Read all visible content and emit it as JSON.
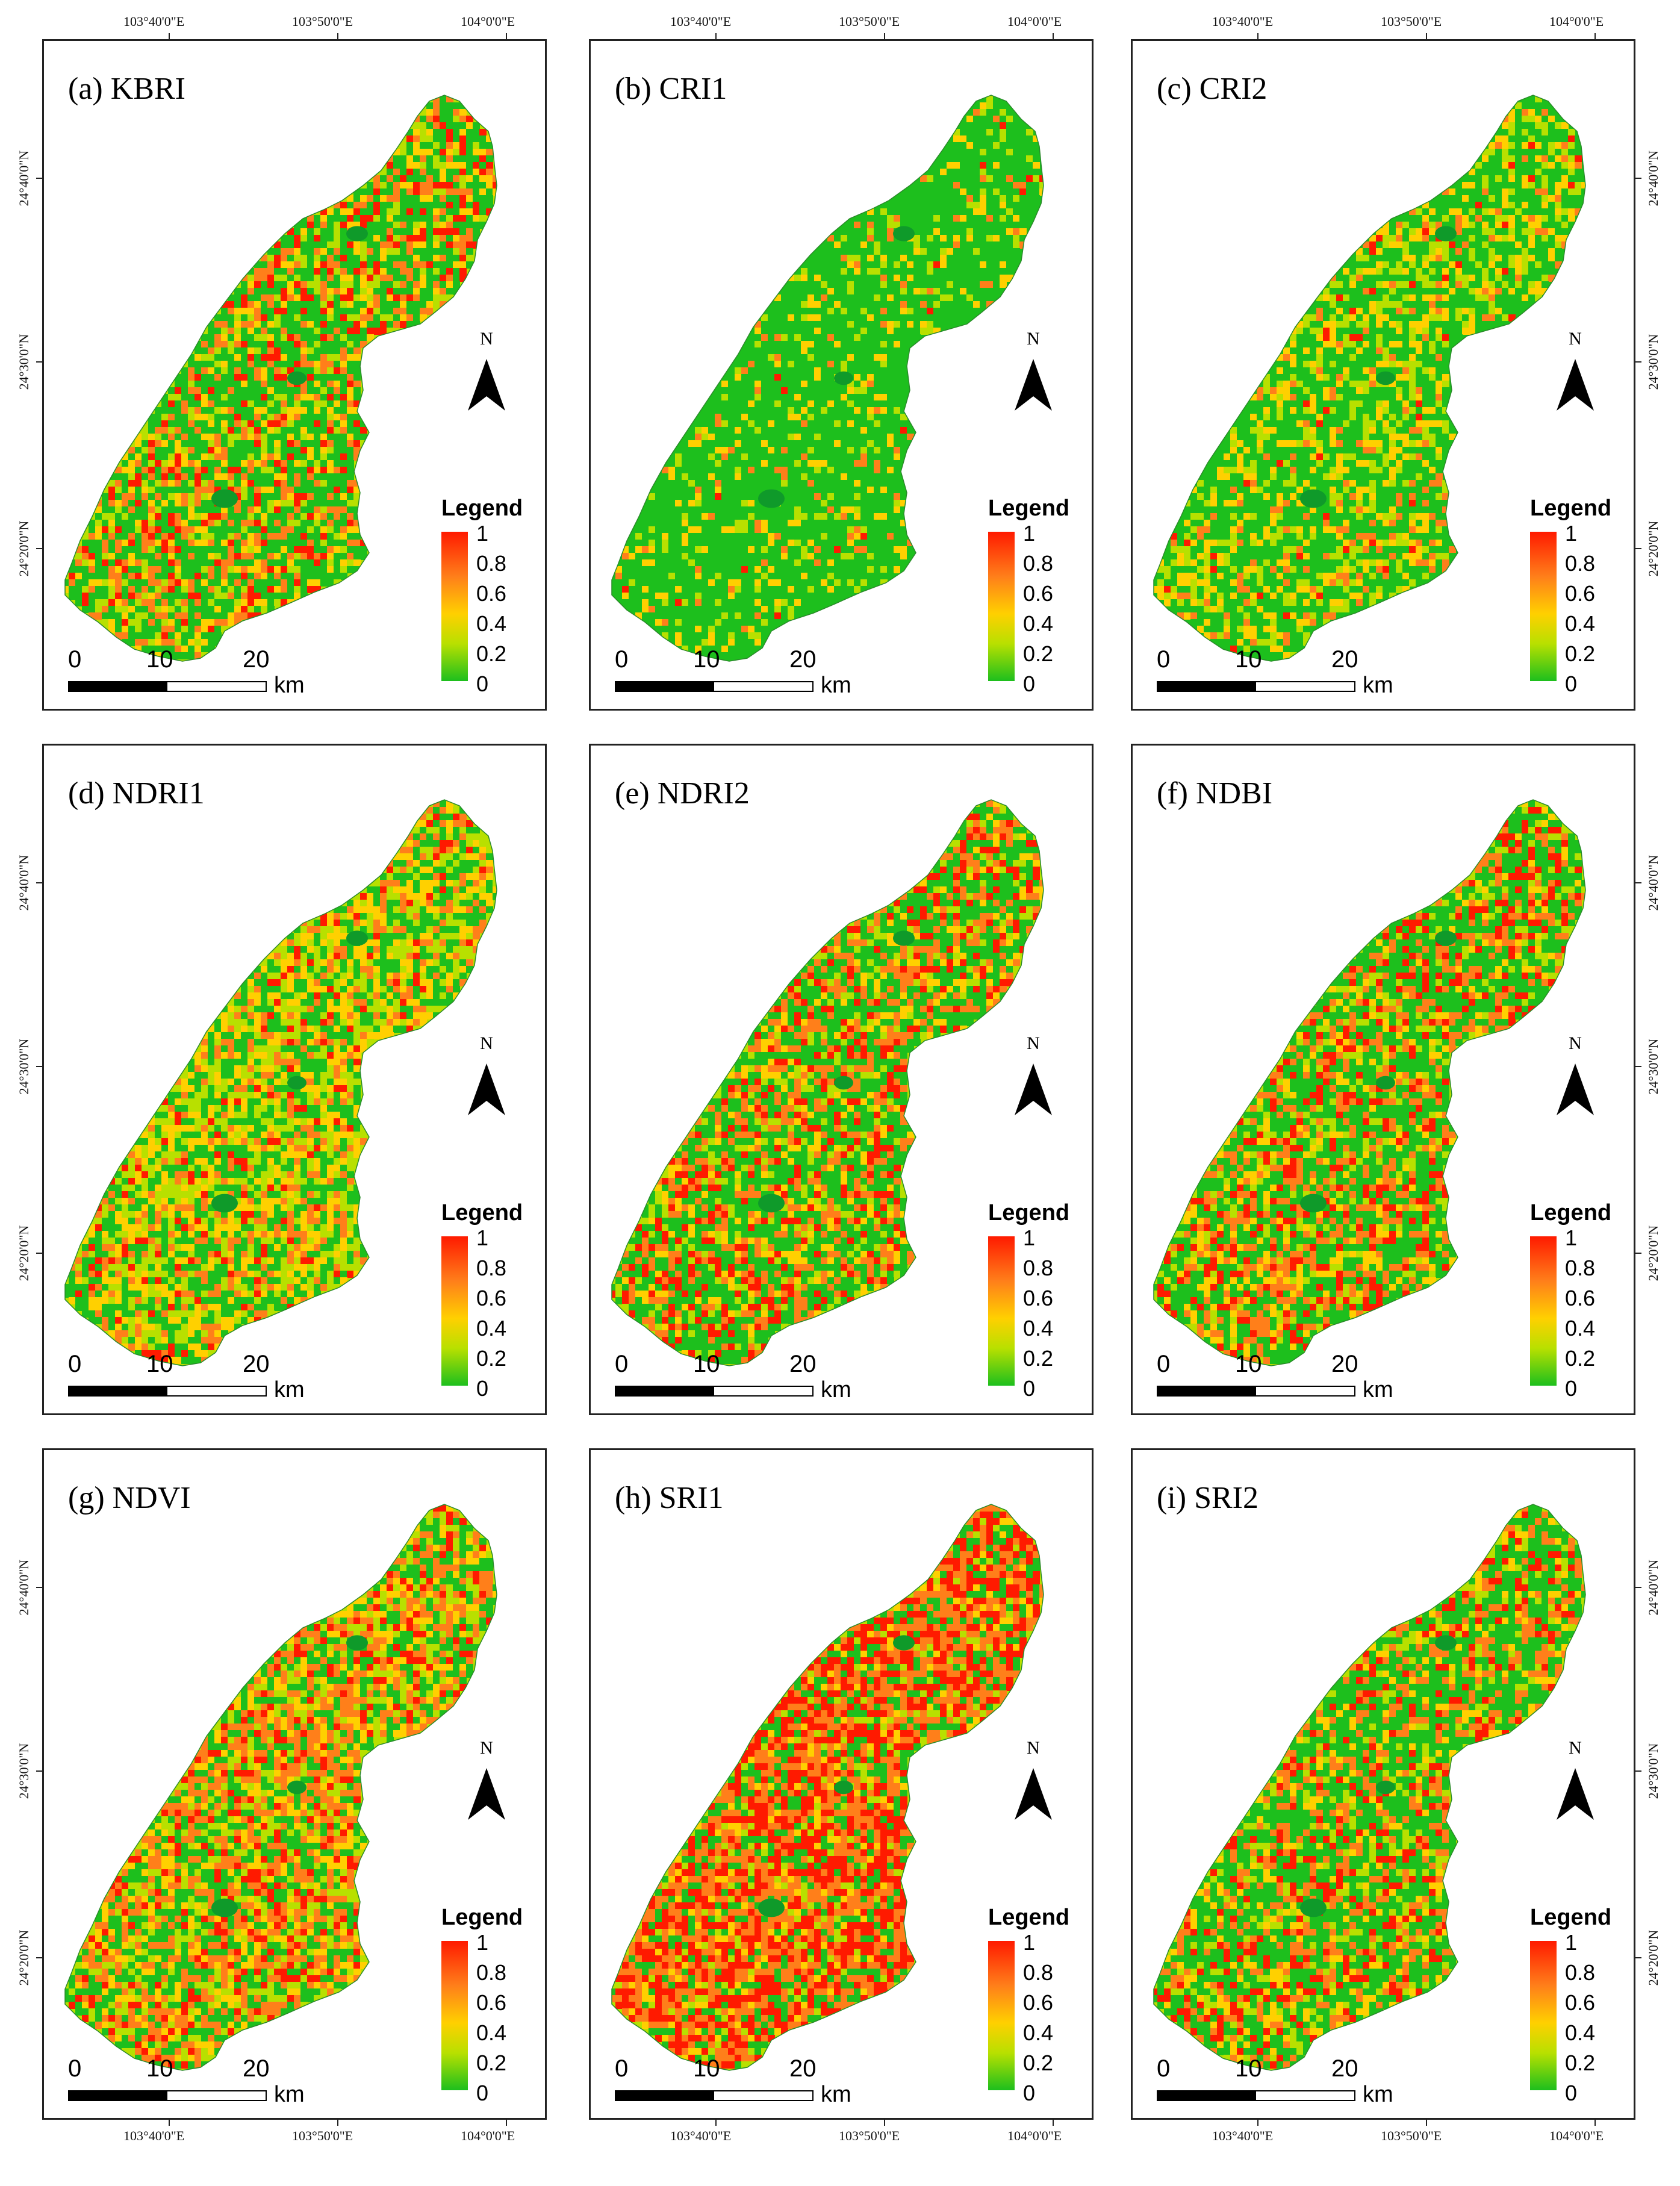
{
  "figure": {
    "panels": [
      {
        "id": "a",
        "title": "(a) KBRI",
        "index": "KBRI",
        "composition": {
          "green": 0.45,
          "yellow": 0.25,
          "orange": 0.18,
          "red": 0.12
        }
      },
      {
        "id": "b",
        "title": "(b) CRI1",
        "index": "CRI1",
        "composition": {
          "green": 0.78,
          "yellow": 0.17,
          "orange": 0.04,
          "red": 0.01
        }
      },
      {
        "id": "c",
        "title": "(c) CRI2",
        "index": "CRI2",
        "composition": {
          "green": 0.55,
          "yellow": 0.35,
          "orange": 0.08,
          "red": 0.02
        }
      },
      {
        "id": "d",
        "title": "(d) NDRI1",
        "index": "NDRI1",
        "composition": {
          "green": 0.35,
          "yellow": 0.45,
          "orange": 0.14,
          "red": 0.06
        }
      },
      {
        "id": "e",
        "title": "(e) NDRI2",
        "index": "NDRI2",
        "composition": {
          "green": 0.45,
          "yellow": 0.2,
          "orange": 0.2,
          "red": 0.15
        }
      },
      {
        "id": "f",
        "title": "(f) NDBI",
        "index": "NDBI",
        "composition": {
          "green": 0.45,
          "yellow": 0.2,
          "orange": 0.2,
          "red": 0.15
        }
      },
      {
        "id": "g",
        "title": "(g) NDVI",
        "index": "NDVI",
        "composition": {
          "green": 0.3,
          "yellow": 0.3,
          "orange": 0.28,
          "red": 0.12
        }
      },
      {
        "id": "h",
        "title": "(h) SRI1",
        "index": "SRI1",
        "composition": {
          "green": 0.2,
          "yellow": 0.15,
          "orange": 0.3,
          "red": 0.35
        }
      },
      {
        "id": "i",
        "title": "(i) SRI2",
        "index": "SRI2",
        "composition": {
          "green": 0.5,
          "yellow": 0.2,
          "orange": 0.18,
          "red": 0.12
        }
      }
    ],
    "legend": {
      "title": "Legend",
      "ticks": [
        "1",
        "0.8",
        "0.6",
        "0.4",
        "0.2",
        "0"
      ],
      "colors": {
        "high": "#ff1a00",
        "mid_high": "#ff7f1a",
        "mid": "#ffd000",
        "mid_low": "#b8e000",
        "low": "#1dbf1d"
      }
    },
    "scale_bar": {
      "labels": [
        "0",
        "10",
        "20"
      ],
      "unit": "km"
    },
    "north_arrow": {
      "label": "N"
    },
    "longitude_labels": [
      "103°40'0\"E",
      "103°50'0\"E",
      "104°0'0\"E"
    ],
    "latitude_labels": [
      "24°40'0\"N",
      "24°30'0\"N",
      "24°20'0\"N"
    ]
  }
}
